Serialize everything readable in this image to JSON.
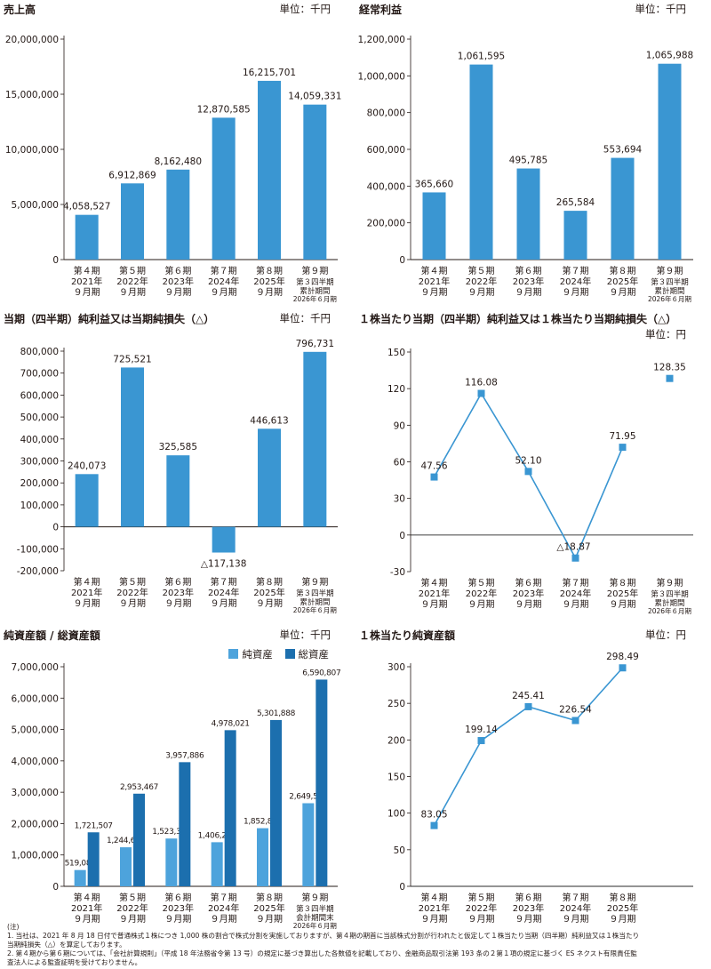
{
  "chart_data": [
    {
      "type": "bar",
      "title": "売上高",
      "unit": "単位：千円",
      "categories": [
        [
          "第４期",
          "2021年",
          "９月期"
        ],
        [
          "第５期",
          "2022年",
          "９月期"
        ],
        [
          "第６期",
          "2023年",
          "９月期"
        ],
        [
          "第７期",
          "2024年",
          "９月期"
        ],
        [
          "第８期",
          "2025年",
          "９月期"
        ],
        [
          "第９期",
          "第３四半期",
          "累計期間",
          "2026年６月期"
        ]
      ],
      "values": [
        4058527,
        6912869,
        8162480,
        12870585,
        16215701,
        14059331
      ],
      "value_labels": [
        "4,058,527",
        "6,912,869",
        "8,162,480",
        "12,870,585",
        "16,215,701",
        "14,059,331"
      ],
      "yticks": [
        "0",
        "5,000,000",
        "10,000,000",
        "15,000,000",
        "20,000,000"
      ],
      "ylim": [
        0,
        20000000
      ],
      "color": "#3a96d2"
    },
    {
      "type": "bar",
      "title": "経常利益",
      "unit": "単位：千円",
      "categories": [
        [
          "第４期",
          "2021年",
          "９月期"
        ],
        [
          "第５期",
          "2022年",
          "９月期"
        ],
        [
          "第６期",
          "2023年",
          "９月期"
        ],
        [
          "第７期",
          "2024年",
          "９月期"
        ],
        [
          "第８期",
          "2025年",
          "９月期"
        ],
        [
          "第９期",
          "第３四半期",
          "累計期間",
          "2026年６月期"
        ]
      ],
      "values": [
        365660,
        1061595,
        495785,
        265584,
        553694,
        1065988
      ],
      "value_labels": [
        "365,660",
        "1,061,595",
        "495,785",
        "265,584",
        "553,694",
        "1,065,988"
      ],
      "yticks": [
        "0",
        "200,000",
        "400,000",
        "600,000",
        "800,000",
        "1,000,000",
        "1,200,000"
      ],
      "ylim": [
        0,
        1200000
      ],
      "color": "#3a96d2"
    },
    {
      "type": "bar",
      "title": "当期（四半期）純利益又は当期純損失（△）",
      "unit": "単位：千円",
      "categories": [
        [
          "第４期",
          "2021年",
          "９月期"
        ],
        [
          "第５期",
          "2022年",
          "９月期"
        ],
        [
          "第６期",
          "2023年",
          "９月期"
        ],
        [
          "第７期",
          "2024年",
          "９月期"
        ],
        [
          "第８期",
          "2025年",
          "９月期"
        ],
        [
          "第９期",
          "第３四半期",
          "累計期間",
          "2026年６月期"
        ]
      ],
      "values": [
        240073,
        725521,
        325585,
        -117138,
        446613,
        796731
      ],
      "value_labels": [
        "240,073",
        "725,521",
        "325,585",
        "△117,138",
        "446,613",
        "796,731"
      ],
      "yticks": [
        "-200,000",
        "-100,000",
        "0",
        "100,000",
        "200,000",
        "300,000",
        "400,000",
        "500,000",
        "600,000",
        "700,000",
        "800,000"
      ],
      "ylim": [
        -200000,
        800000
      ],
      "color": "#3a96d2"
    },
    {
      "type": "line",
      "title": "１株当たり当期（四半期）純利益又は１株当たり当期純損失（△）",
      "unit": "単位：円",
      "categories": [
        [
          "第４期",
          "2021年",
          "９月期"
        ],
        [
          "第５期",
          "2022年",
          "９月期"
        ],
        [
          "第６期",
          "2023年",
          "９月期"
        ],
        [
          "第７期",
          "2024年",
          "９月期"
        ],
        [
          "第８期",
          "2025年",
          "９月期"
        ],
        [
          "第９期",
          "第３四半期",
          "累計期間",
          "2026年６月期"
        ]
      ],
      "values": [
        47.56,
        116.08,
        52.1,
        -18.87,
        71.95,
        128.35
      ],
      "value_labels": [
        "47.56",
        "116.08",
        "52.10",
        "△18.87",
        "71.95",
        "128.35"
      ],
      "connected_points": 5,
      "yticks": [
        "-30",
        "0",
        "30",
        "60",
        "90",
        "120",
        "150"
      ],
      "ylim": [
        -30,
        150
      ],
      "color": "#3a96d2"
    },
    {
      "type": "bar",
      "title": "純資産額 / 総資産額",
      "unit": "単位：千円",
      "categories": [
        [
          "第４期",
          "2021年",
          "９月期"
        ],
        [
          "第５期",
          "2022年",
          "９月期"
        ],
        [
          "第６期",
          "2023年",
          "９月期"
        ],
        [
          "第７期",
          "2024年",
          "９月期"
        ],
        [
          "第８期",
          "2025年",
          "９月期"
        ],
        [
          "第９期",
          "第３四半期",
          "会計期間末",
          "2026年６月期"
        ]
      ],
      "series": [
        {
          "name": "純資産",
          "values": [
            519084,
            1244605,
            1523386,
            1406247,
            1852860,
            2649592
          ],
          "value_labels": [
            "519,084",
            "1,244,605",
            "1,523,386",
            "1,406,247",
            "1,852,860",
            "2,649,592"
          ],
          "color": "#4da3dc"
        },
        {
          "name": "総資産",
          "values": [
            1721507,
            2953467,
            3957886,
            4978021,
            5301888,
            6590807
          ],
          "value_labels": [
            "1,721,507",
            "2,953,467",
            "3,957,886",
            "4,978,021",
            "5,301,888",
            "6,590,807"
          ],
          "color": "#1c6fae"
        }
      ],
      "yticks": [
        "0",
        "1,000,000",
        "2,000,000",
        "3,000,000",
        "4,000,000",
        "5,000,000",
        "6,000,000",
        "7,000,000"
      ],
      "ylim": [
        0,
        7000000
      ],
      "legend": "top-right"
    },
    {
      "type": "line",
      "title": "１株当たり純資産額",
      "unit": "単位：円",
      "categories": [
        [
          "第４期",
          "2021年",
          "９月期"
        ],
        [
          "第５期",
          "2022年",
          "９月期"
        ],
        [
          "第６期",
          "2023年",
          "９月期"
        ],
        [
          "第７期",
          "2024年",
          "９月期"
        ],
        [
          "第８期",
          "2025年",
          "９月期"
        ]
      ],
      "values": [
        83.05,
        199.14,
        245.41,
        226.54,
        298.49
      ],
      "value_labels": [
        "83.05",
        "199.14",
        "245.41",
        "226.54",
        "298.49"
      ],
      "connected_points": 5,
      "slots": 6,
      "yticks": [
        "0",
        "50",
        "100",
        "150",
        "200",
        "250",
        "300"
      ],
      "ylim": [
        0,
        300
      ],
      "color": "#3a96d2"
    }
  ],
  "notes": [
    "(注)",
    "1. 当社は、2021 年 8 月 18 日付で普通株式１株につき 1,000 株の割合で株式分割を実施しておりますが、第４期の期首に当該株式分割が行われたと仮定して１株当たり当期（四半期）純利益又は１株当たり",
    "当期純損失（△）を算定しております。",
    "2. 第４期から第６期については、「会社計算規則」（平成 18 年法務省令第 13 号）の規定に基づき算出した各数値を記載しており、金融商品取引法第 193 条の２第１項の規定に基づく ES ネクスト有限責任監",
    "査法人による監査証明を受けておりません。"
  ]
}
